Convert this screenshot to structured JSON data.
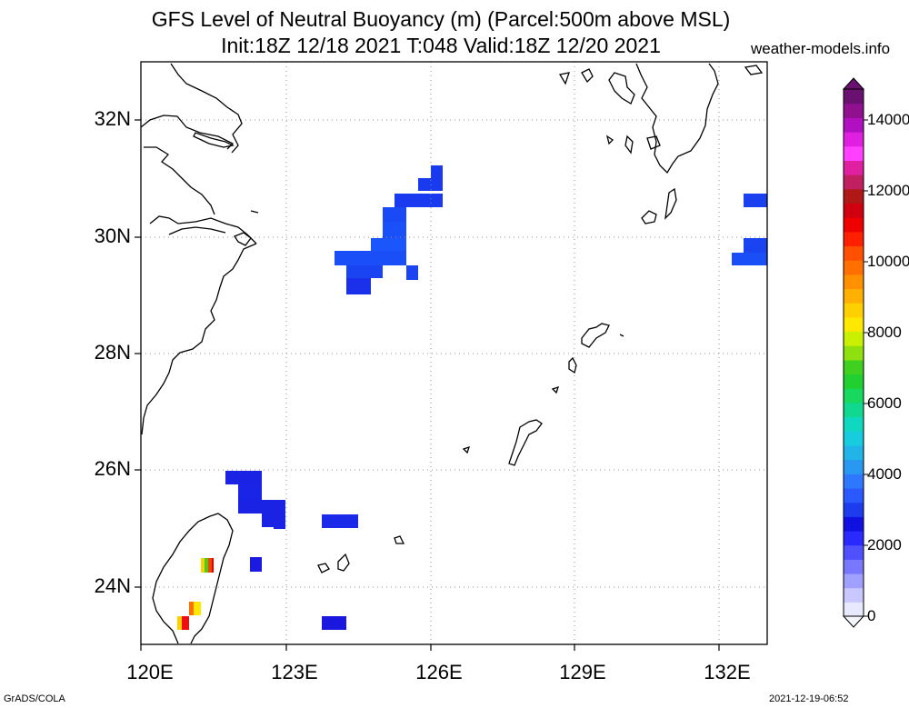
{
  "header": {
    "title_line1": "GFS Level of Neutral Buoyancy (m) (Parcel:500m above MSL)",
    "title_line2": "Init:18Z 12/18 2021 T:048 Valid:18Z 12/20 2021",
    "site": "weather-models.info"
  },
  "axes": {
    "lat_labels": [
      "32N",
      "30N",
      "28N",
      "26N",
      "24N"
    ],
    "lon_labels": [
      "120E",
      "123E",
      "126E",
      "129E",
      "132E"
    ]
  },
  "colorbar": {
    "labels": [
      "14000",
      "12000",
      "10000",
      "8000",
      "6000",
      "4000",
      "2000",
      "0"
    ],
    "colors": [
      "#e8e8ff",
      "#c8c8ff",
      "#a0a0ff",
      "#7878ff",
      "#5050ff",
      "#2a2aff",
      "#1010e0",
      "#1d3cf0",
      "#2a5aff",
      "#2e78ff",
      "#2898f0",
      "#20b4e8",
      "#18cce0",
      "#10d8c0",
      "#10d890",
      "#18d860",
      "#20d030",
      "#40d020",
      "#90e010",
      "#c8f000",
      "#ffe800",
      "#ffd000",
      "#ffb000",
      "#ff9000",
      "#ff7000",
      "#ff5000",
      "#ff2000",
      "#ee0000",
      "#d00010",
      "#b01818",
      "#c02060",
      "#e020a0",
      "#ff40ff",
      "#e020e0",
      "#b010c0",
      "#901090",
      "#6a1070"
    ]
  },
  "footer": {
    "left": "GrADS/COLA",
    "right": "2021-12-19-06:52"
  }
}
